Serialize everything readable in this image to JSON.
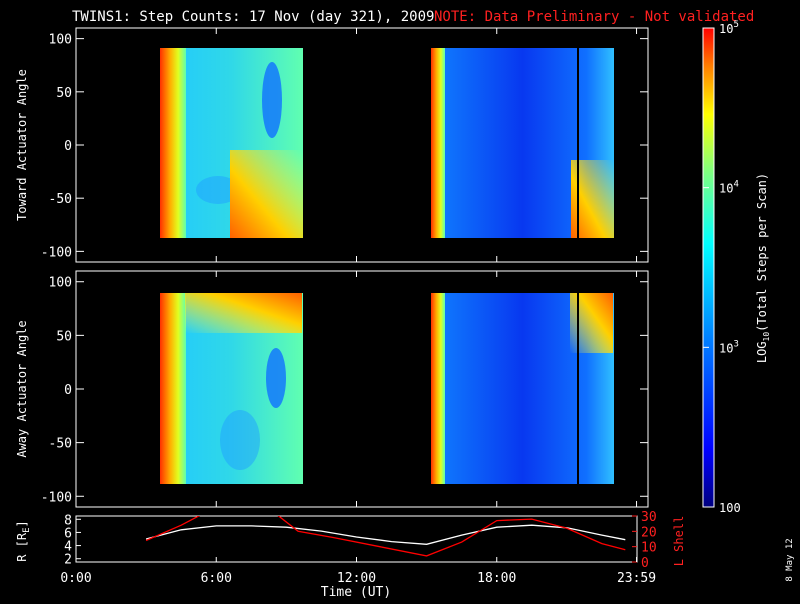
{
  "title": "TWINS1: Step Counts: 17 Nov (day 321), 2009",
  "note": "NOTE: Data Preliminary - Not validated",
  "date_stamp": "8 May 12",
  "colorbar": {
    "label": "LOG10(Total Steps per Scan)",
    "label_prefix": "LOG",
    "label_sub": "10",
    "label_suffix": "(Total Steps per Scan)",
    "ticks": [
      {
        "value": 100000,
        "label": "10",
        "exp": "5"
      },
      {
        "value": 10000,
        "label": "10",
        "exp": "4"
      },
      {
        "value": 1000,
        "label": "10",
        "exp": "3"
      },
      {
        "value": 100,
        "label": "100",
        "exp": ""
      }
    ],
    "range": [
      100,
      100000
    ],
    "scale": "log",
    "colors": [
      "#00007f",
      "#0000ff",
      "#007fff",
      "#00ffff",
      "#7fff7f",
      "#ffff00",
      "#ff7f00",
      "#ff0000"
    ]
  },
  "chart_data": [
    {
      "type": "heatmap",
      "ylabel": "Toward Actuator Angle",
      "ylim": [
        -110,
        110
      ],
      "yticks": [
        100,
        50,
        0,
        -50,
        -100
      ],
      "xlim": [
        0,
        24
      ],
      "data_intervals_hours": [
        [
          3.0,
          9.4
        ],
        [
          15.1,
          23.1
        ]
      ],
      "marker_hour": 21.4
    },
    {
      "type": "heatmap",
      "ylabel": "Away Actuator Angle",
      "ylim": [
        -110,
        110
      ],
      "yticks": [
        100,
        50,
        0,
        -50,
        -100
      ],
      "xlim": [
        0,
        24
      ],
      "data_intervals_hours": [
        [
          3.0,
          9.4
        ],
        [
          15.1,
          23.1
        ]
      ],
      "marker_hour": 21.4
    },
    {
      "type": "line",
      "ylabel_left": "R [RE]",
      "ylabel_left_prefix": "R [R",
      "ylabel_left_sub": "E",
      "ylabel_left_suffix": "]",
      "ylabel_right": "L Shell",
      "left_ylim": [
        1.5,
        8.5
      ],
      "left_yticks": [
        8,
        6,
        4,
        2
      ],
      "right_ylim": [
        0,
        30
      ],
      "right_yticks": [
        30,
        20,
        10,
        0
      ],
      "xlabel": "Time (UT)",
      "xticks": [
        {
          "hour": 0,
          "label": "0:00"
        },
        {
          "hour": 6,
          "label": "6:00"
        },
        {
          "hour": 12,
          "label": "12:00"
        },
        {
          "hour": 18,
          "label": "18:00"
        },
        {
          "hour": 23.98,
          "label": "23:59"
        }
      ],
      "series": [
        {
          "name": "R [RE]",
          "color": "#ffffff",
          "axis": "left",
          "x": [
            3,
            4.5,
            6,
            7.5,
            9,
            10.5,
            12,
            13.5,
            15,
            16.5,
            18,
            19.5,
            21,
            22.5,
            23.5
          ],
          "y": [
            5.0,
            6.4,
            7.0,
            7.0,
            6.8,
            6.2,
            5.3,
            4.6,
            4.2,
            5.6,
            6.8,
            7.1,
            6.7,
            5.6,
            4.9
          ]
        },
        {
          "name": "L Shell",
          "color": "#ff0000",
          "axis": "right",
          "x": [
            3,
            4.5,
            5.5,
            8.5,
            9.5,
            11,
            13,
            15,
            16.5,
            18,
            19.5,
            21,
            22.5,
            23.5
          ],
          "y": [
            14,
            24,
            32,
            32,
            20,
            16,
            10,
            4,
            13,
            27,
            28,
            22,
            12,
            8
          ]
        }
      ]
    }
  ]
}
